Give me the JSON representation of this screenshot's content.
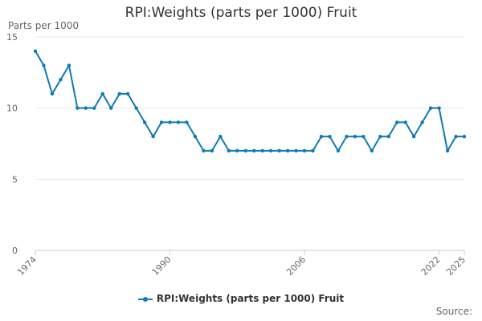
{
  "chart_data": {
    "type": "line",
    "title": "RPI:Weights (parts per 1000) Fruit",
    "ylabel": "Parts per 1000",
    "xlabel": "",
    "x": [
      1974,
      1975,
      1976,
      1977,
      1978,
      1979,
      1980,
      1981,
      1982,
      1983,
      1984,
      1985,
      1986,
      1987,
      1988,
      1989,
      1990,
      1991,
      1992,
      1993,
      1994,
      1995,
      1996,
      1997,
      1998,
      1999,
      2000,
      2001,
      2002,
      2003,
      2004,
      2005,
      2006,
      2007,
      2008,
      2009,
      2010,
      2011,
      2012,
      2013,
      2014,
      2015,
      2016,
      2017,
      2018,
      2019,
      2020,
      2021,
      2022,
      2023,
      2024,
      2025
    ],
    "x_ticks": [
      "1974",
      "1990",
      "2006",
      "2022",
      "2025"
    ],
    "xlim": [
      1974,
      2025
    ],
    "ylim": [
      0,
      15
    ],
    "y_ticks": [
      "0",
      "5",
      "10",
      "15"
    ],
    "grid": true,
    "legend_position": "bottom",
    "series": [
      {
        "name": "RPI:Weights (parts per 1000) Fruit",
        "color": "#0f7ab4",
        "values": [
          14,
          13,
          11,
          12,
          13,
          10,
          10,
          10,
          11,
          10,
          11,
          11,
          10,
          9,
          8,
          9,
          9,
          9,
          9,
          8,
          7,
          7,
          8,
          7,
          7,
          7,
          7,
          7,
          7,
          7,
          7,
          7,
          7,
          7,
          8,
          8,
          7,
          8,
          8,
          8,
          7,
          8,
          8,
          9,
          9,
          8,
          9,
          10,
          10,
          7,
          8,
          8
        ]
      }
    ],
    "source_label": "Source:"
  }
}
